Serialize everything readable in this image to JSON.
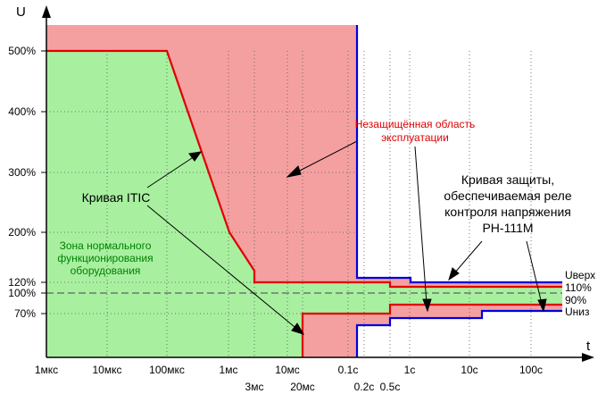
{
  "chart_data": {
    "type": "line",
    "xlabel": "t",
    "ylabel": "U",
    "x_scale": "log",
    "x_ticks": [
      "1мкс",
      "10мкс",
      "100мкс",
      "1мс",
      "10мс",
      "0.1с",
      "1с",
      "10с",
      "100с"
    ],
    "x_ticks_extra": [
      "3мс",
      "20мс",
      "0.2с",
      "0.5с"
    ],
    "y_ticks": [
      "500%",
      "400%",
      "300%",
      "200%",
      "120%",
      "110%",
      "100%",
      "90%",
      "70%"
    ],
    "colors": {
      "normal_zone": "#a8f0a0",
      "unprotected_zone": "#f5a0a0",
      "itic_line": "#e00000",
      "relay_line": "#0000e0",
      "nominal_line": "#606060"
    },
    "series": [
      {
        "name": "Кривая ITIC",
        "points_upper": [
          {
            "t": "1мкс",
            "u": 500
          },
          {
            "t": "100мкс",
            "u": 500
          },
          {
            "t": "1мс",
            "u": 200
          },
          {
            "t": "3мс",
            "u": 140
          },
          {
            "t": "3мс",
            "u": 120
          },
          {
            "t": "0.5с",
            "u": 120
          },
          {
            "t": "0.5с",
            "u": 110
          },
          {
            "t": "10с",
            "u": 110
          },
          {
            "t": "10с",
            "u": 110
          },
          {
            "t": "200с",
            "u": 110
          }
        ],
        "points_lower": [
          {
            "t": "20мс",
            "u": 0
          },
          {
            "t": "20мс",
            "u": 70
          },
          {
            "t": "0.5с",
            "u": 70
          },
          {
            "t": "0.5с",
            "u": 80
          },
          {
            "t": "10с",
            "u": 80
          },
          {
            "t": "10с",
            "u": 90
          },
          {
            "t": "200с",
            "u": 90
          }
        ]
      },
      {
        "name": "Кривая защиты РН-111М",
        "points_upper": [
          {
            "t": "0.2с",
            "u": 540
          },
          {
            "t": "0.2с",
            "u": 125
          },
          {
            "t": "1с",
            "u": 125
          },
          {
            "t": "1с",
            "u": 120
          },
          {
            "t": "200с",
            "u": 120
          }
        ],
        "points_lower": [
          {
            "t": "0.2с",
            "u": 0
          },
          {
            "t": "0.2с",
            "u": 65
          },
          {
            "t": "0.5с",
            "u": 65
          },
          {
            "t": "0.5с",
            "u": 70
          },
          {
            "t": "10с",
            "u": 70
          },
          {
            "t": "10с",
            "u": 75
          },
          {
            "t": "200с",
            "u": 75
          }
        ]
      }
    ],
    "annotations": {
      "unprotected_zone": [
        "Незащищённая область",
        "эксплуатации"
      ],
      "itic_curve": "Кривая ITIC",
      "normal_zone": [
        "Зона нормального",
        "функционирования",
        "оборудования"
      ],
      "relay_curve": [
        "Кривая защиты,",
        "обеспечиваемая реле",
        "контроля напряжения",
        "РН-111М"
      ],
      "u_upper": "Uверх",
      "u_lower": "Uниз",
      "pct_110": "110%",
      "pct_90": "90%"
    }
  }
}
